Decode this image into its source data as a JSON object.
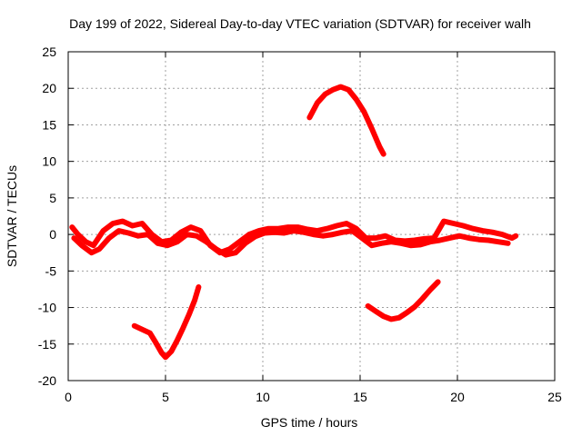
{
  "chart_data": {
    "type": "scatter",
    "title": "Day 199 of 2022, Sidereal Day-to-day VTEC variation (SDTVAR) for receiver walh",
    "xlabel": "GPS time / hours",
    "ylabel": "SDTVAR / TECUs",
    "xlim": [
      0,
      25
    ],
    "ylim": [
      -20,
      25
    ],
    "xticks": [
      "0",
      "5",
      "10",
      "15",
      "20",
      "25"
    ],
    "yticks": [
      "-20",
      "-15",
      "-10",
      "-5",
      "0",
      "5",
      "10",
      "15",
      "20",
      "25"
    ],
    "grid": true,
    "series_color": "#ff0000",
    "series": [
      {
        "name": "main-band",
        "x": [
          0.2,
          0.5,
          0.9,
          1.3,
          1.8,
          2.3,
          2.8,
          3.3,
          3.8,
          4.3,
          4.8,
          5.3,
          5.8,
          6.3,
          6.8,
          7.3,
          7.8,
          8.3,
          8.8,
          9.3,
          9.8,
          10.3,
          10.8,
          11.3,
          11.8,
          12.3,
          12.8,
          13.3,
          13.8,
          14.3,
          14.8,
          15.3,
          15.8,
          16.3,
          16.8,
          17.3,
          17.8,
          18.3,
          18.8,
          19.3,
          19.8,
          20.3,
          20.8,
          21.3,
          21.8,
          22.3,
          22.8,
          23.0
        ],
        "y": [
          1.0,
          0.0,
          -1.0,
          -1.5,
          0.5,
          1.5,
          1.8,
          1.2,
          1.5,
          0.0,
          -1.0,
          -0.8,
          0.3,
          1.0,
          0.5,
          -1.5,
          -2.5,
          -2.0,
          -1.0,
          0.0,
          0.5,
          0.8,
          0.8,
          1.0,
          1.0,
          0.7,
          0.5,
          0.8,
          1.2,
          1.5,
          0.8,
          -0.5,
          -0.5,
          -0.2,
          -0.8,
          -0.9,
          -0.8,
          -0.6,
          -0.5,
          1.8,
          1.5,
          1.2,
          0.8,
          0.5,
          0.3,
          0.0,
          -0.5,
          -0.2
        ]
      },
      {
        "name": "main-band-lower",
        "x": [
          0.3,
          0.7,
          1.2,
          1.6,
          2.1,
          2.6,
          3.1,
          3.6,
          4.1,
          4.6,
          5.1,
          5.6,
          6.1,
          6.6,
          7.1,
          7.6,
          8.1,
          8.6,
          9.1,
          9.6,
          10.1,
          10.6,
          11.1,
          11.6,
          12.1,
          12.6,
          13.1,
          13.6,
          14.1,
          14.6,
          15.1,
          15.6,
          16.1,
          16.6,
          17.1,
          17.6,
          18.1,
          18.6,
          19.1,
          19.6,
          20.1,
          20.6,
          21.1,
          21.6,
          22.1,
          22.6
        ],
        "y": [
          -0.5,
          -1.5,
          -2.5,
          -2.0,
          -0.5,
          0.5,
          0.2,
          -0.2,
          0.0,
          -1.2,
          -1.5,
          -1.0,
          0.0,
          -0.2,
          -1.0,
          -2.0,
          -2.8,
          -2.5,
          -1.2,
          -0.3,
          0.2,
          0.3,
          0.2,
          0.5,
          0.3,
          0.0,
          -0.2,
          0.0,
          0.3,
          0.5,
          -0.5,
          -1.5,
          -1.2,
          -1.0,
          -1.2,
          -1.5,
          -1.4,
          -1.0,
          -0.8,
          -0.5,
          -0.2,
          -0.5,
          -0.7,
          -0.8,
          -1.0,
          -1.2
        ]
      },
      {
        "name": "arc-positive",
        "x": [
          12.4,
          12.8,
          13.2,
          13.6,
          14.0,
          14.4,
          14.8,
          15.2,
          15.6,
          16.0,
          16.2
        ],
        "y": [
          16.0,
          18.0,
          19.2,
          19.8,
          20.2,
          19.8,
          18.5,
          16.8,
          14.5,
          12.0,
          11.0
        ]
      },
      {
        "name": "arc-negative-left",
        "x": [
          3.4,
          3.8,
          4.2,
          4.5,
          4.8,
          5.0,
          5.3,
          5.6,
          5.9,
          6.2,
          6.5,
          6.7
        ],
        "y": [
          -12.5,
          -13.0,
          -13.5,
          -14.8,
          -16.2,
          -16.8,
          -16.0,
          -14.5,
          -12.8,
          -11.0,
          -9.0,
          -7.2
        ]
      },
      {
        "name": "arc-negative-right",
        "x": [
          15.4,
          15.8,
          16.2,
          16.6,
          17.0,
          17.4,
          17.8,
          18.2,
          18.6,
          19.0
        ],
        "y": [
          -9.8,
          -10.5,
          -11.2,
          -11.6,
          -11.4,
          -10.7,
          -9.9,
          -8.8,
          -7.6,
          -6.5
        ]
      }
    ]
  }
}
